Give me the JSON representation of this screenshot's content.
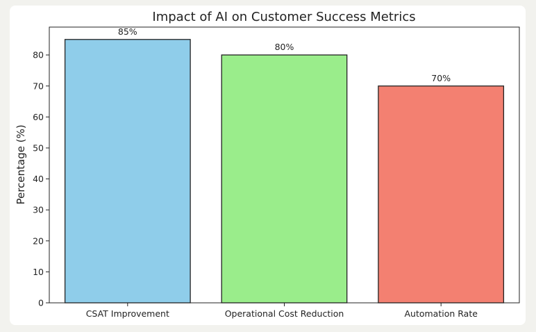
{
  "chart_data": {
    "type": "bar",
    "title": "Impact of AI on Customer Success Metrics",
    "xlabel": "",
    "ylabel": "Percentage (%)",
    "categories": [
      "CSAT Improvement",
      "Operational Cost Reduction",
      "Automation Rate"
    ],
    "values": [
      85,
      80,
      70
    ],
    "data_labels": [
      "85%",
      "80%",
      "70%"
    ],
    "colors": [
      "#8fcdea",
      "#9aed8b",
      "#f38071"
    ],
    "edge_color": "#222222",
    "ylim": [
      0,
      89
    ],
    "yticks": [
      0,
      10,
      20,
      30,
      40,
      50,
      60,
      70,
      80
    ],
    "grid": false,
    "legend": "none"
  }
}
